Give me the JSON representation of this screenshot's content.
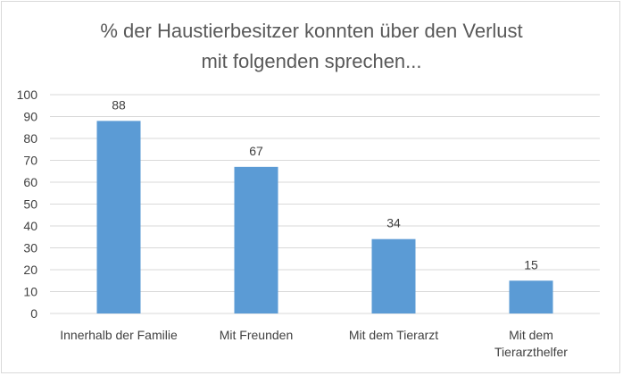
{
  "chart_data": {
    "type": "bar",
    "title": [
      "% der  Haustierbesitzer konnten über den Verlust",
      "mit folgenden sprechen..."
    ],
    "categories": [
      [
        "Innerhalb der Familie"
      ],
      [
        "Mit Freunden"
      ],
      [
        "Mit dem Tierarzt"
      ],
      [
        "Mit dem",
        "Tierarzthelfer"
      ]
    ],
    "values": [
      88,
      67,
      34,
      15
    ],
    "data_labels": [
      "88",
      "67",
      "34",
      "15"
    ],
    "ylim": [
      0,
      100
    ],
    "yticks": [
      0,
      10,
      20,
      30,
      40,
      50,
      60,
      70,
      80,
      90,
      100
    ],
    "xlabel": "",
    "ylabel": "",
    "grid": true,
    "bar_color": "#5b9bd5",
    "grid_color": "#d9d9d9"
  }
}
